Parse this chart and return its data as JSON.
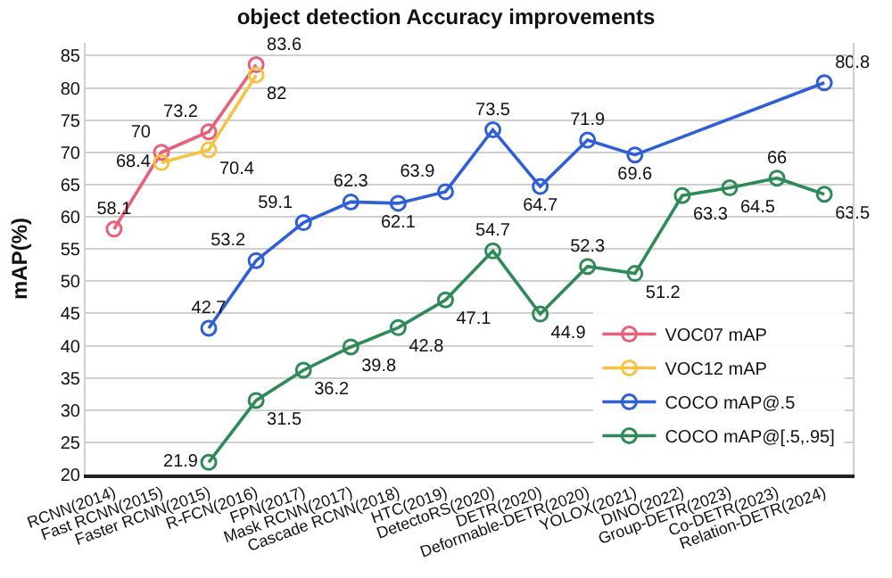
{
  "chart_data": {
    "type": "line",
    "title": "object detection Accuracy improvements",
    "ylabel": "mAP(%)",
    "categories": [
      "RCNN(2014)",
      "Fast RCNN(2015)",
      "Faster RCNN(2015)",
      "R-FCN(2016)",
      "FPN(2017)",
      "Mask RCNN(2017)",
      "Cascade RCNN(2018)",
      "HTC(2019)",
      "DetectoRS(2020)",
      "DETR(2020)",
      "Deformable-DETR(2020)",
      "YOLOX(2021)",
      "DINO(2022)",
      "Group-DETR(2023)",
      "Co-DETR(2023)",
      "Relation-DETR(2024)"
    ],
    "series": [
      {
        "name": "VOC07 mAP",
        "color": "#e8607a",
        "values": [
          58.1,
          70,
          73.2,
          83.6,
          null,
          null,
          null,
          null,
          null,
          null,
          null,
          null,
          null,
          null,
          null,
          null
        ]
      },
      {
        "name": "VOC12 mAP",
        "color": "#f5c242",
        "values": [
          null,
          68.4,
          70.4,
          82,
          null,
          null,
          null,
          null,
          null,
          null,
          null,
          null,
          null,
          null,
          null,
          null
        ]
      },
      {
        "name": "COCO mAP@.5",
        "color": "#2e5fd6",
        "values": [
          null,
          null,
          42.7,
          53.2,
          59.1,
          62.3,
          62.1,
          63.9,
          73.5,
          64.7,
          71.9,
          69.6,
          null,
          null,
          null,
          80.8
        ]
      },
      {
        "name": "COCO mAP@[.5,.95]",
        "color": "#2e8b57",
        "values": [
          null,
          null,
          21.9,
          31.5,
          36.2,
          39.8,
          42.8,
          47.1,
          54.7,
          44.9,
          52.3,
          51.2,
          63.3,
          64.5,
          66,
          63.5
        ]
      }
    ],
    "ylim": [
      20,
      87
    ],
    "yticks": [
      20,
      25,
      30,
      35,
      40,
      45,
      50,
      55,
      60,
      65,
      70,
      75,
      80,
      85
    ],
    "grid": "y",
    "legend": "bottom right",
    "marker": "circle",
    "line_style": "solid",
    "data_labels": true
  }
}
